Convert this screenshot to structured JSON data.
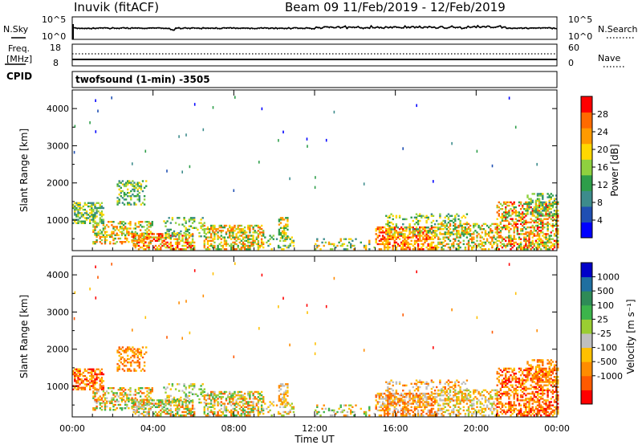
{
  "header": {
    "radar": "Inuvik  (fitACF)",
    "beam_info": "Beam 09   11/Feb/2019 - 12/Feb/2019"
  },
  "params_panel": {
    "nsky_label": "N.Sky",
    "nsearch_label": "N.Search",
    "freq_label_1": "Freq.",
    "freq_label_2": "[MHz]",
    "cpid_label": "CPID",
    "nave_label": "Nave",
    "noise_ticks": [
      "10^5",
      "10^0"
    ],
    "noise_right_ticks": [
      "10^5",
      "10^0"
    ],
    "freq_ticks": [
      "18",
      "8"
    ],
    "nave_ticks": [
      "60",
      "0"
    ]
  },
  "cpid_text": "twofsound (1-min) -3505",
  "colors": {
    "power_scale": [
      "#0000ff",
      "#1f4fb3",
      "#3d8c8c",
      "#2e9e4a",
      "#8fd13f",
      "#ffd700",
      "#ff9a00",
      "#ff6a00",
      "#ff0000"
    ],
    "velocity_scale": [
      "#ff0000",
      "#ff5a00",
      "#ff8c00",
      "#ffc000",
      "#bfbfbf",
      "#9acd32",
      "#3cb44b",
      "#2e8b57",
      "#1f6fa0",
      "#0000c8"
    ]
  },
  "chart_data": [
    {
      "type": "heatmap",
      "name": "power",
      "xlabel": "Time UT",
      "ylabel": "Slant Range [km]",
      "x_ticks": [
        "00:00",
        "04:00",
        "08:00",
        "12:00",
        "16:00",
        "20:00",
        "00:00"
      ],
      "y_ticks": [
        1000,
        2000,
        3000,
        4000
      ],
      "ylim": [
        180,
        4500
      ],
      "xlim_hours": [
        0,
        24
      ],
      "colorbar_label": "Power [dB]",
      "colorbar_ticks": [
        "28",
        "24",
        "20",
        "16",
        "12",
        "8",
        "4"
      ],
      "colorbar_range": [
        0,
        32
      ]
    },
    {
      "type": "heatmap",
      "name": "velocity",
      "xlabel": "Time UT",
      "ylabel": "Slant Range [km]",
      "x_ticks": [
        "00:00",
        "04:00",
        "08:00",
        "12:00",
        "16:00",
        "20:00",
        "00:00"
      ],
      "y_ticks": [
        1000,
        2000,
        3000,
        4000
      ],
      "ylim": [
        180,
        4500
      ],
      "xlim_hours": [
        0,
        24
      ],
      "colorbar_label": "Velocity [m s⁻¹]",
      "colorbar_ticks": [
        "1000",
        "500",
        "100",
        "25",
        "-25",
        "-100",
        "-500",
        "-1000"
      ]
    }
  ]
}
